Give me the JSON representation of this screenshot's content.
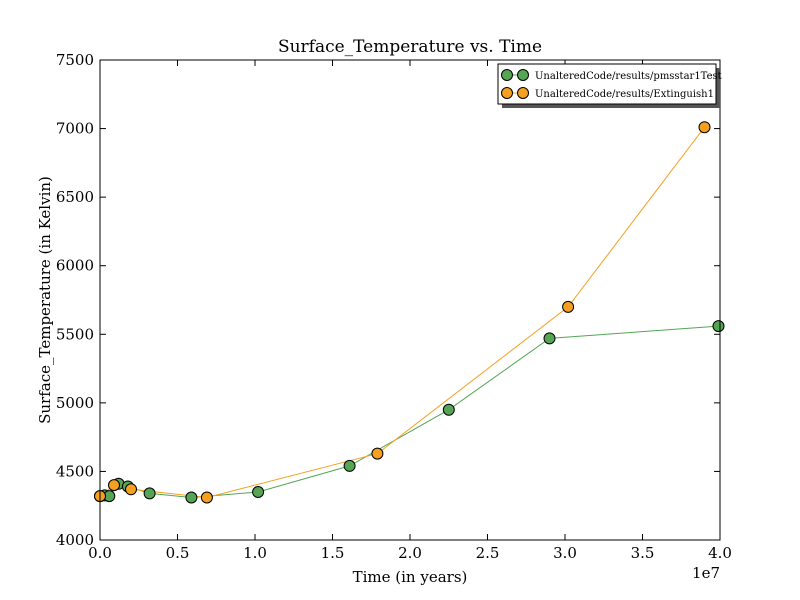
{
  "chart_data": {
    "type": "line",
    "title": "Surface_Temperature vs. Time",
    "xlabel": "Time (in years)",
    "ylabel": "Surface_Temperature (in Kelvin)",
    "x_offset_label": "1e7",
    "xlim": [
      0,
      4.0
    ],
    "ylim": [
      4000,
      7500
    ],
    "x_ticks": [
      "0.0",
      "0.5",
      "1.0",
      "1.5",
      "2.0",
      "2.5",
      "3.0",
      "3.5",
      "4.0"
    ],
    "y_ticks": [
      "4000",
      "4500",
      "5000",
      "5500",
      "6000",
      "6500",
      "7000",
      "7500"
    ],
    "grid": false,
    "legend_position": "top-right",
    "series": [
      {
        "name": "UnalteredCode/results/pmsstar1Test",
        "color": "#55a555",
        "x": [
          0.0,
          0.03,
          0.06,
          0.12,
          0.18,
          0.32,
          0.59,
          1.02,
          1.61,
          2.25,
          2.9,
          3.99
        ],
        "y": [
          4320,
          4325,
          4320,
          4410,
          4390,
          4340,
          4310,
          4350,
          4540,
          4950,
          5470,
          5560
        ]
      },
      {
        "name": "UnalteredCode/results/Extinguish1",
        "color": "#f5a020",
        "x": [
          0.0,
          0.09,
          0.2,
          0.69,
          1.79,
          3.02,
          3.9
        ],
        "y": [
          4320,
          4400,
          4370,
          4310,
          4630,
          5700,
          7010
        ]
      }
    ]
  }
}
